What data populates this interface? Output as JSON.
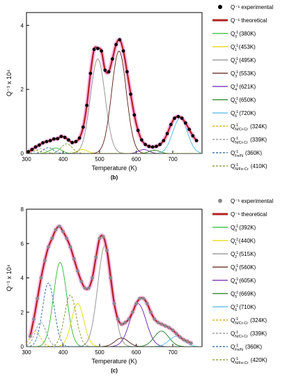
{
  "chart_data": [
    {
      "type": "line",
      "panel_label": "(b)",
      "xlabel": "Temperature (K)",
      "ylabel": "Q⁻¹ x 10⁴",
      "xlim": [
        300,
        780
      ],
      "ylim": [
        0,
        4.4
      ],
      "x_ticks": [
        300,
        400,
        500,
        600,
        700
      ],
      "y_ticks": [
        0,
        2,
        4
      ],
      "grid": false,
      "legend_position": "right",
      "experimental": {
        "name": "Q⁻¹ experimental",
        "color": "#000000",
        "x": [
          305,
          315,
          325,
          335,
          345,
          355,
          365,
          375,
          385,
          395,
          405,
          415,
          425,
          435,
          445,
          455,
          465,
          475,
          485,
          495,
          505,
          515,
          525,
          535,
          545,
          555,
          565,
          575,
          585,
          595,
          605,
          615,
          625,
          635,
          645,
          655,
          665,
          675,
          685,
          695,
          705,
          715,
          725,
          735,
          745,
          755,
          765
        ],
        "y": [
          0.05,
          0.12,
          0.2,
          0.26,
          0.33,
          0.37,
          0.4,
          0.45,
          0.46,
          0.53,
          0.5,
          0.42,
          0.34,
          0.37,
          0.48,
          0.82,
          1.5,
          2.5,
          3.25,
          3.28,
          3.2,
          2.6,
          2.55,
          2.95,
          3.4,
          3.55,
          3.2,
          2.55,
          1.85,
          1.2,
          0.72,
          0.42,
          0.28,
          0.22,
          0.2,
          0.22,
          0.28,
          0.4,
          0.62,
          0.9,
          1.1,
          1.15,
          1.1,
          0.95,
          0.75,
          0.55,
          0.4
        ]
      },
      "theoretical": {
        "name": "Q⁻¹ theoretical",
        "color": "#b22222"
      },
      "peaks": [
        {
          "name": "Q₀⁻¹ (380K)",
          "sub": "0",
          "label": "(380K)",
          "t": 380,
          "h": 0.17,
          "w": 15,
          "color": "#2db82d",
          "dash": false
        },
        {
          "name": "Q₁⁻¹ (453K)",
          "sub": "1",
          "label": "(453K)",
          "t": 453,
          "h": 0.12,
          "w": 14,
          "color": "#e6d800",
          "dash": false
        },
        {
          "name": "Q₂⁻¹ (495K)",
          "sub": "2",
          "label": "(495K)",
          "t": 495,
          "h": 2.95,
          "w": 20,
          "color": "#8c8c8c",
          "dash": false
        },
        {
          "name": "Q₃⁻¹ (553K)",
          "sub": "3",
          "label": "(553K)",
          "t": 553,
          "h": 3.2,
          "w": 20,
          "color": "#5a1a12",
          "dash": false
        },
        {
          "name": "Q₄⁻¹ (621K)",
          "sub": "4",
          "label": "(621K)",
          "t": 621,
          "h": 0.12,
          "w": 14,
          "color": "#6a1fb0",
          "dash": false
        },
        {
          "name": "Q₅⁻¹ (650K)",
          "sub": "5",
          "label": "(650K)",
          "t": 650,
          "h": 0.1,
          "w": 14,
          "color": "#1e7a1e",
          "dash": false
        },
        {
          "name": "Q₆⁻¹ (720K)",
          "sub": "6",
          "label": "(720K)",
          "t": 720,
          "h": 1.1,
          "w": 20,
          "color": "#4db8e6",
          "dash": false
        },
        {
          "name": "Q⁻¹ N/Cr-Cr (324K)",
          "sub": "N/Cr-Cr",
          "label": "(324K)",
          "t": 324,
          "h": 0.1,
          "w": 12,
          "color": "#d9a400",
          "dash": true
        },
        {
          "name": "Q⁻¹ N/Cr-Cr (339K)",
          "sub": "N/Cr-Cr",
          "label": "(339K)",
          "t": 339,
          "h": 0.15,
          "w": 13,
          "color": "#8c8c8c",
          "dash": true
        },
        {
          "name": "Q⁻¹ Fe/N (360K)",
          "sub": "Fe/N",
          "label": "(360K)",
          "t": 360,
          "h": 0.18,
          "w": 14,
          "color": "#1f5fa8",
          "dash": true
        },
        {
          "name": "Q⁻¹ N/Fe-Cr (410K)",
          "sub": "N/Fe-Cr",
          "label": "(410K)",
          "t": 410,
          "h": 0.3,
          "w": 15,
          "color": "#7a8f1f",
          "dash": true
        }
      ]
    },
    {
      "type": "line",
      "panel_label": "(c)",
      "xlabel": "Temperature (K)",
      "ylabel": "Q⁻¹ x 10⁴",
      "xlim": [
        300,
        780
      ],
      "ylim": [
        0,
        8
      ],
      "x_ticks": [
        300,
        400,
        500,
        600,
        700
      ],
      "y_ticks": [
        0,
        2,
        4,
        6,
        8
      ],
      "grid": false,
      "legend_position": "right",
      "experimental": {
        "name": "Q⁻¹ experimental",
        "color": "#8a8a8a",
        "x": [
          310,
          320,
          330,
          340,
          350,
          360,
          370,
          380,
          390,
          400,
          410,
          420,
          430,
          440,
          450,
          460,
          470,
          480,
          490,
          500,
          510,
          520,
          530,
          540,
          550,
          560,
          570,
          580,
          590,
          600,
          610,
          620,
          630,
          640,
          650,
          660,
          670,
          680,
          690,
          700,
          710,
          720,
          730,
          740,
          750
        ],
        "y": [
          0.6,
          1.6,
          2.8,
          4.0,
          5.0,
          5.8,
          6.3,
          6.8,
          7.0,
          6.7,
          6.3,
          5.8,
          5.1,
          4.4,
          3.8,
          3.4,
          3.4,
          4.0,
          5.2,
          6.3,
          6.4,
          5.6,
          4.0,
          2.5,
          1.6,
          1.3,
          1.4,
          1.6,
          2.0,
          2.5,
          2.8,
          2.8,
          2.5,
          2.0,
          1.6,
          1.4,
          1.3,
          1.2,
          1.1,
          0.95,
          0.75,
          0.55,
          0.4,
          0.3,
          0.2
        ]
      },
      "theoretical": {
        "name": "Q⁻¹ theoretical",
        "color": "#b22222"
      },
      "peaks": [
        {
          "name": "Q₀⁻¹ (392K)",
          "sub": "0",
          "label": "(392K)",
          "t": 392,
          "h": 4.9,
          "w": 18,
          "color": "#2db82d",
          "dash": false
        },
        {
          "name": "Q₁⁻¹ (440K)",
          "sub": "1",
          "label": "(440K)",
          "t": 440,
          "h": 2.5,
          "w": 17,
          "color": "#e6d800",
          "dash": false
        },
        {
          "name": "Q₂⁻¹ (515K)",
          "sub": "2",
          "label": "(515K)",
          "t": 515,
          "h": 5.9,
          "w": 20,
          "color": "#8c8c8c",
          "dash": false
        },
        {
          "name": "Q₃⁻¹ (560K)",
          "sub": "3",
          "label": "(560K)",
          "t": 560,
          "h": 0.5,
          "w": 18,
          "color": "#5a1a12",
          "dash": false
        },
        {
          "name": "Q₄⁻¹ (605K)",
          "sub": "4",
          "label": "(605K)",
          "t": 605,
          "h": 2.5,
          "w": 22,
          "color": "#6a1fb0",
          "dash": false
        },
        {
          "name": "Q₅⁻¹ (669K)",
          "sub": "5",
          "label": "(669K)",
          "t": 669,
          "h": 0.9,
          "w": 20,
          "color": "#1e7a1e",
          "dash": false
        },
        {
          "name": "Q₆⁻¹ (710K)",
          "sub": "6",
          "label": "(710K)",
          "t": 710,
          "h": 0.6,
          "w": 20,
          "color": "#4db8e6",
          "dash": false
        },
        {
          "name": "Q⁻¹ N/Cr-Cr (324K)",
          "sub": "N/Cr-Cr",
          "label": "(324K)",
          "t": 324,
          "h": 0.9,
          "w": 14,
          "color": "#d9a400",
          "dash": true
        },
        {
          "name": "Q⁻¹ N/Cr-Cr (339K)",
          "sub": "N/Cr-Cr",
          "label": "(339K)",
          "t": 339,
          "h": 1.4,
          "w": 15,
          "color": "#8c8c8c",
          "dash": true
        },
        {
          "name": "Q⁻¹ Fe/N (360K)",
          "sub": "Fe/N",
          "label": "(360K)",
          "t": 360,
          "h": 3.7,
          "w": 16,
          "color": "#1f5fa8",
          "dash": true
        },
        {
          "name": "Q⁻¹ N/Fe-Cr (420K)",
          "sub": "N/Fe-Cr",
          "label": "(420K)",
          "t": 420,
          "h": 3.0,
          "w": 16,
          "color": "#7a8f1f",
          "dash": true
        }
      ]
    }
  ]
}
